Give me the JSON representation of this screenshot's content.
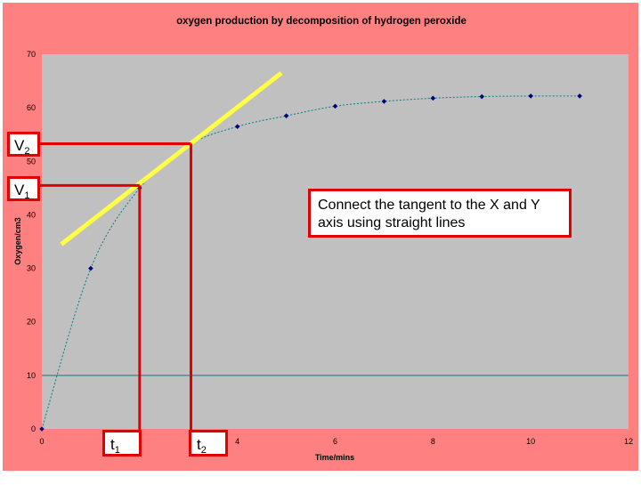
{
  "chart_data": {
    "type": "scatter",
    "title": "oxygen production by decomposition of hydrogen peroxide",
    "xlabel": "Time/mins",
    "ylabel": "Oxygen/cm3",
    "xlim": [
      0,
      12
    ],
    "ylim": [
      0,
      70
    ],
    "xticks": [
      0,
      2,
      4,
      6,
      8,
      10,
      12
    ],
    "yticks": [
      0,
      10,
      20,
      30,
      40,
      50,
      60,
      70
    ],
    "grid": "horizontal line at 10",
    "points": {
      "x": [
        0,
        1,
        2,
        3,
        4,
        5,
        6,
        7,
        8,
        9,
        10,
        11
      ],
      "y": [
        0,
        30,
        45,
        53,
        56.5,
        58.5,
        60.3,
        61.2,
        61.8,
        62.1,
        62.2,
        62.2
      ]
    },
    "tangent": {
      "from": [
        0.4,
        34.5
      ],
      "to": [
        4.9,
        66.5
      ]
    },
    "guides": {
      "v1": {
        "x": 2.0,
        "y": 45.5
      },
      "v2": {
        "x": 3.05,
        "y": 53.3
      }
    },
    "annotations": {
      "v1": {
        "main": "V",
        "sub": "1"
      },
      "v2": {
        "main": "V",
        "sub": "2"
      },
      "t1": {
        "main": "t",
        "sub": "1"
      },
      "t2": {
        "main": "t",
        "sub": "2"
      },
      "note": "Connect the tangent to the X and Y axis using straight lines"
    },
    "colors": {
      "background": "#ff8080",
      "plot_area": "#c0c0c0",
      "marker": "#000080",
      "fit_line": "#008080",
      "tangent": "#ffff44",
      "guides": "#e00000"
    }
  }
}
